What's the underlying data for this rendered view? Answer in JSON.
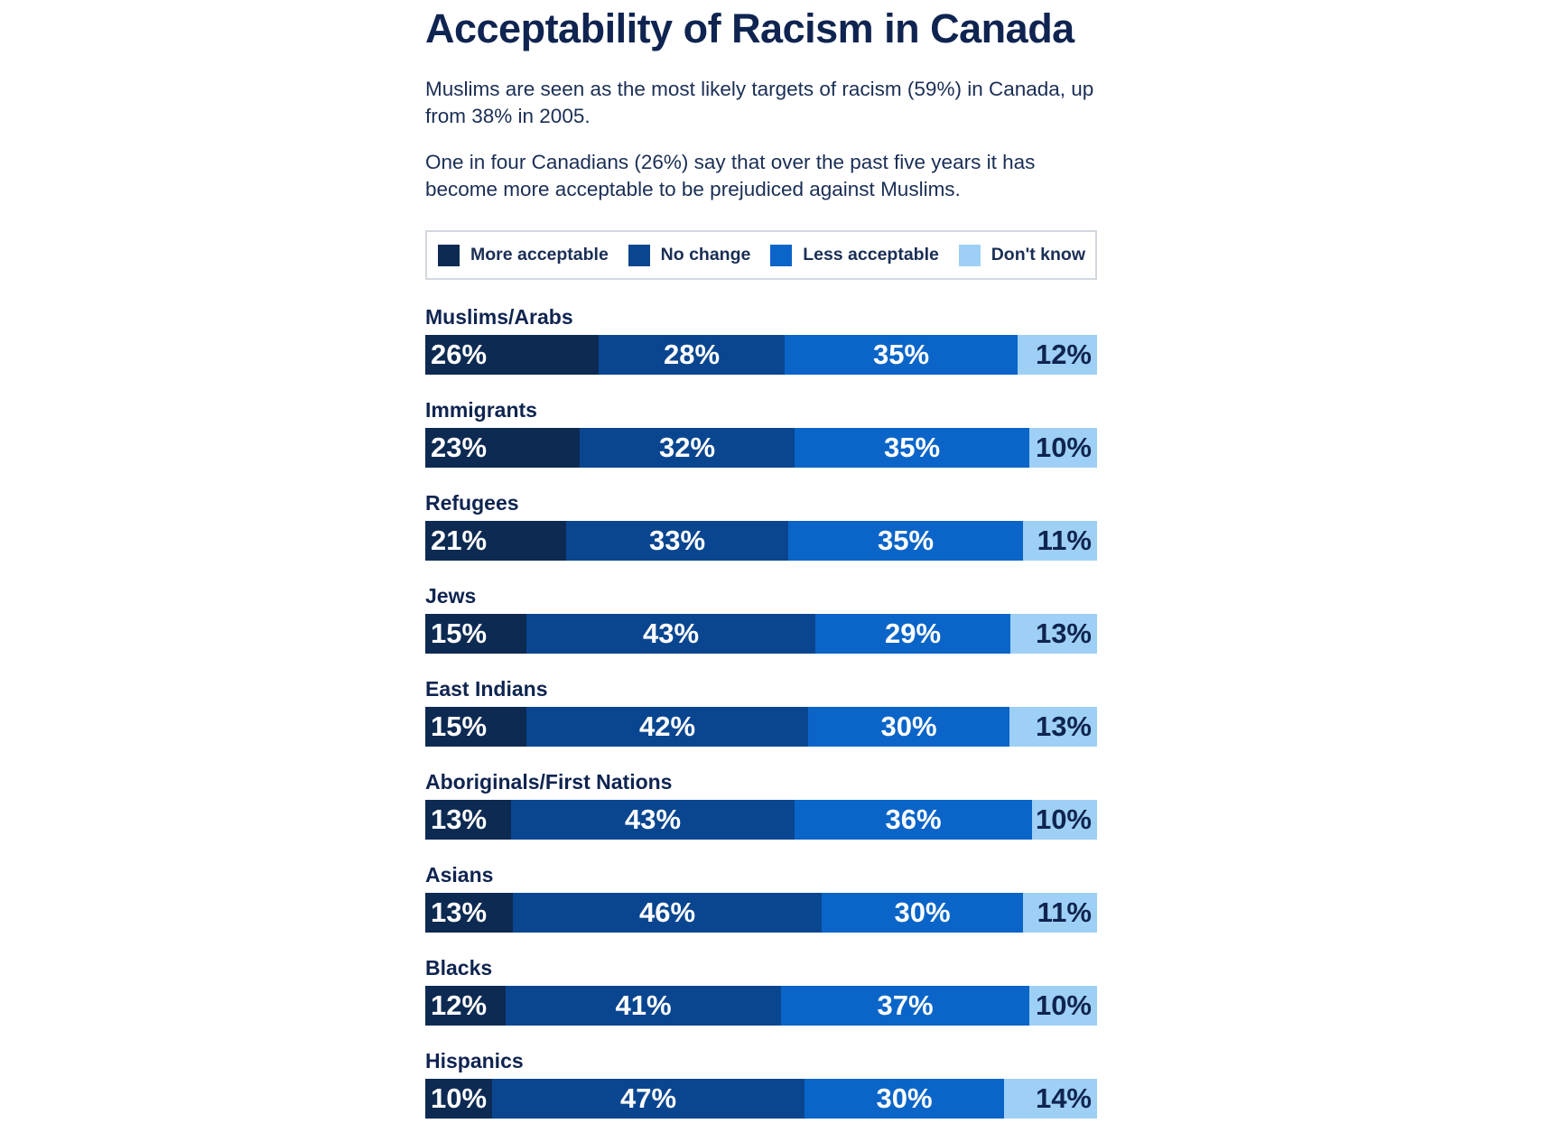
{
  "chart_data": {
    "type": "bar",
    "orientation": "horizontal",
    "stacked": true,
    "title": "Acceptability of Racism in Canada",
    "paragraphs": [
      "Muslims are seen as the most likely targets of racism (59%) in Canada, up from 38% in 2005.",
      "One in four Canadians (26%) say that over the past five years it has become more acceptable to be prejudiced against Muslims."
    ],
    "legend_position": "top",
    "unit": "%",
    "categories": [
      "Muslims/Arabs",
      "Immigrants",
      "Refugees",
      "Jews",
      "East Indians",
      "Aboriginals/First Nations",
      "Asians",
      "Blacks",
      "Hispanics"
    ],
    "series": [
      {
        "name": "More acceptable",
        "color": "#0d2a52",
        "values": [
          26,
          23,
          21,
          15,
          15,
          13,
          13,
          12,
          10
        ]
      },
      {
        "name": "No change",
        "color": "#0a4690",
        "values": [
          28,
          32,
          33,
          43,
          42,
          43,
          46,
          41,
          47
        ]
      },
      {
        "name": "Less acceptable",
        "color": "#0b65c8",
        "values": [
          35,
          35,
          35,
          29,
          30,
          36,
          30,
          37,
          30
        ]
      },
      {
        "name": "Don't know",
        "color": "#9ed0f5",
        "values": [
          12,
          10,
          11,
          13,
          13,
          10,
          11,
          10,
          14
        ]
      }
    ],
    "label_colors": [
      "#ffffff",
      "#ffffff",
      "#ffffff",
      "#0f2450"
    ]
  }
}
